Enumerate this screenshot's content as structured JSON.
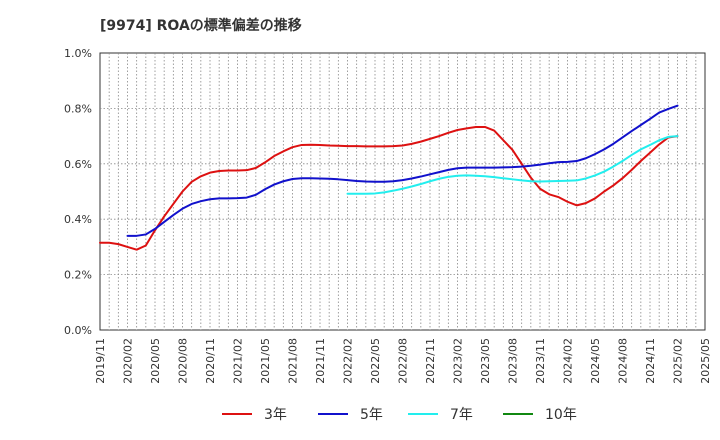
{
  "chart_data": {
    "type": "line",
    "title": "[9974]  ROAの標準偏差の推移",
    "xlabel": "",
    "ylabel": "",
    "ylim": [
      0,
      1.0
    ],
    "y_ticks": [
      0.0,
      0.2,
      0.4,
      0.6,
      0.8,
      1.0
    ],
    "y_tick_labels": [
      "0.0%",
      "0.2%",
      "0.4%",
      "0.6%",
      "0.8%",
      "1.0%"
    ],
    "x_tick_labels": [
      "2019/11",
      "2020/02",
      "2020/05",
      "2020/08",
      "2020/11",
      "2021/02",
      "2021/05",
      "2021/08",
      "2021/11",
      "2022/02",
      "2022/05",
      "2022/08",
      "2022/11",
      "2023/02",
      "2023/05",
      "2023/08",
      "2023/11",
      "2024/02",
      "2024/05",
      "2024/08",
      "2024/11",
      "2025/02",
      "2025/05"
    ],
    "x_range_months": [
      0,
      66
    ],
    "grid": true,
    "legend_position": "bottom",
    "series": [
      {
        "name": "3年",
        "color": "#dd1111",
        "points": [
          [
            0,
            0.315
          ],
          [
            1,
            0.315
          ],
          [
            2,
            0.31
          ],
          [
            3,
            0.3
          ],
          [
            4,
            0.29
          ],
          [
            5,
            0.305
          ],
          [
            6,
            0.36
          ],
          [
            7,
            0.41
          ],
          [
            8,
            0.455
          ],
          [
            9,
            0.5
          ],
          [
            10,
            0.535
          ],
          [
            11,
            0.555
          ],
          [
            12,
            0.568
          ],
          [
            13,
            0.574
          ],
          [
            14,
            0.576
          ],
          [
            15,
            0.576
          ],
          [
            16,
            0.577
          ],
          [
            17,
            0.585
          ],
          [
            18,
            0.605
          ],
          [
            19,
            0.628
          ],
          [
            20,
            0.645
          ],
          [
            21,
            0.66
          ],
          [
            22,
            0.668
          ],
          [
            23,
            0.669
          ],
          [
            24,
            0.668
          ],
          [
            25,
            0.666
          ],
          [
            26,
            0.665
          ],
          [
            27,
            0.664
          ],
          [
            28,
            0.664
          ],
          [
            29,
            0.663
          ],
          [
            30,
            0.663
          ],
          [
            31,
            0.663
          ],
          [
            32,
            0.664
          ],
          [
            33,
            0.666
          ],
          [
            34,
            0.672
          ],
          [
            35,
            0.68
          ],
          [
            36,
            0.69
          ],
          [
            37,
            0.7
          ],
          [
            38,
            0.712
          ],
          [
            39,
            0.722
          ],
          [
            40,
            0.728
          ],
          [
            41,
            0.733
          ],
          [
            42,
            0.733
          ],
          [
            43,
            0.72
          ],
          [
            44,
            0.685
          ],
          [
            45,
            0.65
          ],
          [
            46,
            0.6
          ],
          [
            47,
            0.55
          ],
          [
            48,
            0.51
          ],
          [
            49,
            0.49
          ],
          [
            50,
            0.48
          ],
          [
            51,
            0.463
          ],
          [
            52,
            0.45
          ],
          [
            53,
            0.458
          ],
          [
            54,
            0.475
          ],
          [
            55,
            0.5
          ],
          [
            56,
            0.522
          ],
          [
            57,
            0.548
          ],
          [
            58,
            0.578
          ],
          [
            59,
            0.61
          ],
          [
            60,
            0.64
          ],
          [
            61,
            0.67
          ],
          [
            62,
            0.695
          ],
          [
            63,
            0.7
          ]
        ]
      },
      {
        "name": "5年",
        "color": "#1111cc",
        "points": [
          [
            3,
            0.34
          ],
          [
            4,
            0.34
          ],
          [
            5,
            0.345
          ],
          [
            6,
            0.365
          ],
          [
            7,
            0.39
          ],
          [
            8,
            0.415
          ],
          [
            9,
            0.438
          ],
          [
            10,
            0.455
          ],
          [
            11,
            0.465
          ],
          [
            12,
            0.472
          ],
          [
            13,
            0.475
          ],
          [
            14,
            0.475
          ],
          [
            15,
            0.476
          ],
          [
            16,
            0.478
          ],
          [
            17,
            0.488
          ],
          [
            18,
            0.508
          ],
          [
            19,
            0.525
          ],
          [
            20,
            0.537
          ],
          [
            21,
            0.545
          ],
          [
            22,
            0.548
          ],
          [
            23,
            0.548
          ],
          [
            24,
            0.547
          ],
          [
            25,
            0.546
          ],
          [
            26,
            0.544
          ],
          [
            27,
            0.541
          ],
          [
            28,
            0.538
          ],
          [
            29,
            0.536
          ],
          [
            30,
            0.535
          ],
          [
            31,
            0.535
          ],
          [
            32,
            0.537
          ],
          [
            33,
            0.541
          ],
          [
            34,
            0.547
          ],
          [
            35,
            0.554
          ],
          [
            36,
            0.562
          ],
          [
            37,
            0.57
          ],
          [
            38,
            0.578
          ],
          [
            39,
            0.584
          ],
          [
            40,
            0.586
          ],
          [
            41,
            0.586
          ],
          [
            42,
            0.586
          ],
          [
            43,
            0.586
          ],
          [
            44,
            0.587
          ],
          [
            45,
            0.588
          ],
          [
            46,
            0.59
          ],
          [
            47,
            0.593
          ],
          [
            48,
            0.597
          ],
          [
            49,
            0.602
          ],
          [
            50,
            0.606
          ],
          [
            51,
            0.607
          ],
          [
            52,
            0.61
          ],
          [
            53,
            0.62
          ],
          [
            54,
            0.635
          ],
          [
            55,
            0.652
          ],
          [
            56,
            0.672
          ],
          [
            57,
            0.695
          ],
          [
            58,
            0.718
          ],
          [
            59,
            0.74
          ],
          [
            60,
            0.762
          ],
          [
            61,
            0.785
          ],
          [
            62,
            0.798
          ],
          [
            63,
            0.81
          ]
        ]
      },
      {
        "name": "7年",
        "color": "#22eeee",
        "points": [
          [
            27,
            0.492
          ],
          [
            28,
            0.492
          ],
          [
            29,
            0.492
          ],
          [
            30,
            0.493
          ],
          [
            31,
            0.497
          ],
          [
            32,
            0.503
          ],
          [
            33,
            0.51
          ],
          [
            34,
            0.518
          ],
          [
            35,
            0.527
          ],
          [
            36,
            0.537
          ],
          [
            37,
            0.546
          ],
          [
            38,
            0.553
          ],
          [
            39,
            0.557
          ],
          [
            40,
            0.558
          ],
          [
            41,
            0.557
          ],
          [
            42,
            0.555
          ],
          [
            43,
            0.552
          ],
          [
            44,
            0.548
          ],
          [
            45,
            0.544
          ],
          [
            46,
            0.54
          ],
          [
            47,
            0.537
          ],
          [
            48,
            0.536
          ],
          [
            49,
            0.537
          ],
          [
            50,
            0.538
          ],
          [
            51,
            0.539
          ],
          [
            52,
            0.54
          ],
          [
            53,
            0.547
          ],
          [
            54,
            0.558
          ],
          [
            55,
            0.572
          ],
          [
            56,
            0.59
          ],
          [
            57,
            0.61
          ],
          [
            58,
            0.632
          ],
          [
            59,
            0.652
          ],
          [
            60,
            0.668
          ],
          [
            61,
            0.685
          ],
          [
            62,
            0.697
          ],
          [
            63,
            0.7
          ]
        ]
      },
      {
        "name": "10年",
        "color": "#118811",
        "points": []
      }
    ]
  }
}
